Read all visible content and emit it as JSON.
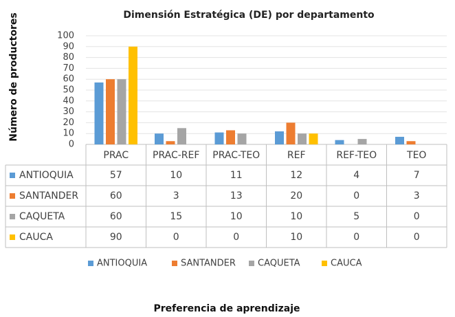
{
  "chart_data": {
    "type": "bar",
    "title": "Dimensión Estratégica (DE) por departamento",
    "y_label": "Número de productores",
    "x_label": "Preferencia de aprendizaje",
    "categories": [
      "PRAC",
      "PRAC-REF",
      "PRAC-TEO",
      "REF",
      "REF-TEO",
      "TEO"
    ],
    "series": [
      {
        "name": "ANTIOQUIA",
        "color": "#5b9bd5",
        "values": [
          57,
          10,
          11,
          12,
          4,
          7
        ]
      },
      {
        "name": "SANTANDER",
        "color": "#ed7d31",
        "values": [
          60,
          3,
          13,
          20,
          0,
          3
        ]
      },
      {
        "name": "CAQUETA",
        "color": "#a5a5a5",
        "values": [
          60,
          15,
          10,
          10,
          5,
          0
        ]
      },
      {
        "name": "CAUCA",
        "color": "#ffc000",
        "values": [
          90,
          0,
          0,
          10,
          0,
          0
        ]
      }
    ],
    "ylim": [
      0,
      100
    ],
    "yticks": [
      0,
      10,
      20,
      30,
      40,
      50,
      60,
      70,
      80,
      90,
      100
    ],
    "grid": true
  }
}
